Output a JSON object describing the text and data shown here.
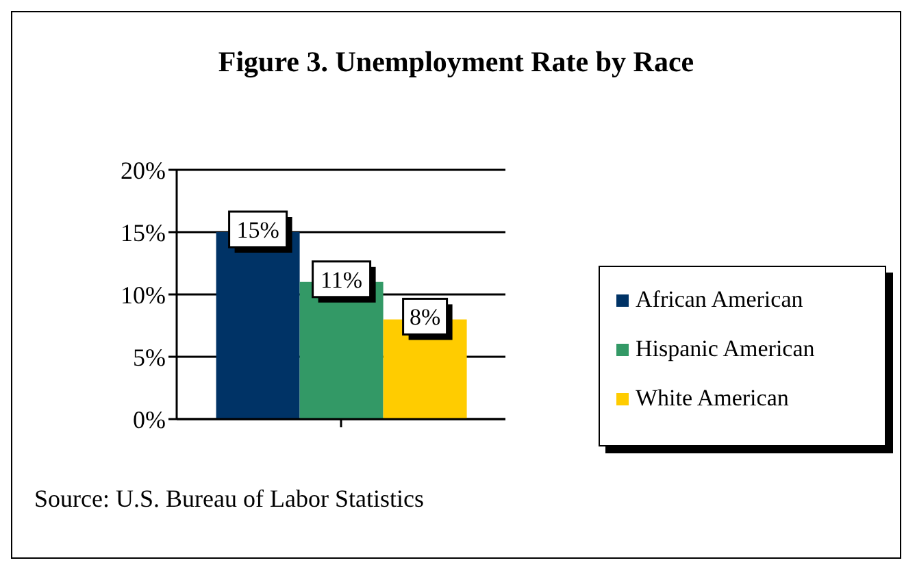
{
  "chart_data": {
    "type": "bar",
    "title": "Figure 3. Unemployment Rate by Race",
    "categories": [
      null
    ],
    "series": [
      {
        "name": "African American",
        "color": "#003366",
        "values": [
          15
        ],
        "value_labels": [
          "15%"
        ]
      },
      {
        "name": "Hispanic American",
        "color": "#339966",
        "values": [
          11
        ],
        "value_labels": [
          "11%"
        ]
      },
      {
        "name": "White American",
        "color": "#ffcc00",
        "values": [
          8
        ],
        "value_labels": [
          "8%"
        ]
      }
    ],
    "ylim": [
      0,
      20
    ],
    "yticks": [
      {
        "value": 0,
        "label": "0%"
      },
      {
        "value": 5,
        "label": "5%"
      },
      {
        "value": 10,
        "label": "10%"
      },
      {
        "value": 15,
        "label": "15%"
      },
      {
        "value": 20,
        "label": "20%"
      }
    ],
    "grid": "y",
    "legend": "right",
    "annotations": [
      "Source: U.S. Bureau of Labor Statistics"
    ]
  }
}
